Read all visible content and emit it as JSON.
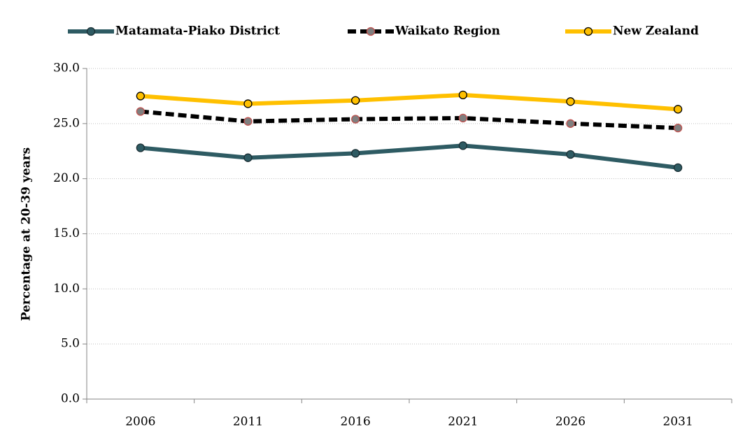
{
  "chart_data": {
    "type": "line",
    "y_label": "Percentage at 20-39 years",
    "categories": [
      "2006",
      "2011",
      "2016",
      "2021",
      "2026",
      "2031"
    ],
    "series": [
      {
        "name": "Matamata-Piako District",
        "color": "#2e5b63",
        "line_style": "solid",
        "marker_fill": "#2e5b63",
        "marker_stroke": "#1a2e33",
        "values": [
          22.8,
          21.9,
          22.3,
          23.0,
          22.2,
          21.0
        ]
      },
      {
        "name": "Waikato Region",
        "color": "#000000",
        "line_style": "dashed",
        "marker_fill": "#7f7f7f",
        "marker_stroke": "#c0504d",
        "values": [
          26.1,
          25.2,
          25.4,
          25.5,
          25.0,
          24.6
        ]
      },
      {
        "name": "New Zealand",
        "color": "#ffc000",
        "line_style": "solid",
        "marker_fill": "#ffc000",
        "marker_stroke": "#000000",
        "values": [
          27.5,
          26.8,
          27.1,
          27.6,
          27.0,
          26.3
        ]
      }
    ],
    "ylim": [
      0,
      30
    ],
    "yticks": [
      {
        "value": 0,
        "label": "0.0"
      },
      {
        "value": 5,
        "label": "5.0"
      },
      {
        "value": 10,
        "label": "10.0"
      },
      {
        "value": 15,
        "label": "15.0"
      },
      {
        "value": 20,
        "label": "20.0"
      },
      {
        "value": 25,
        "label": "25.0"
      },
      {
        "value": 30,
        "label": "30.0"
      }
    ],
    "grid": true,
    "legend": "top"
  }
}
